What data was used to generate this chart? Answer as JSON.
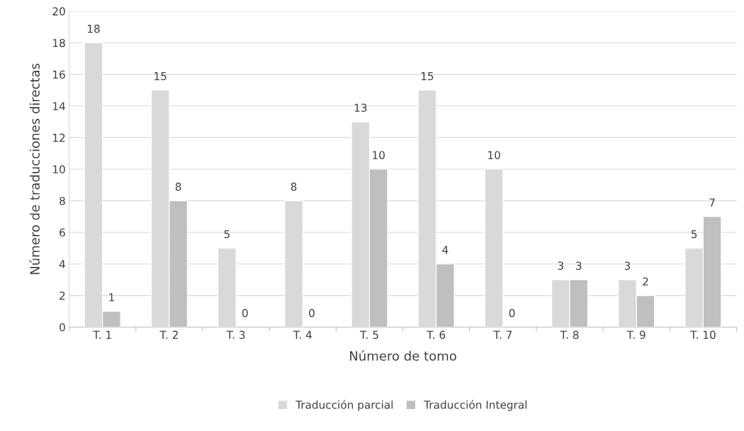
{
  "chart_data": {
    "type": "bar",
    "xlabel": "Número de tomo",
    "ylabel": "Número de traducciones directas",
    "categories": [
      "T. 1",
      "T. 2",
      "T. 3",
      "T. 4",
      "T. 5",
      "T. 6",
      "T. 7",
      "T. 8",
      "T. 9",
      "T. 10"
    ],
    "series": [
      {
        "name": "Traducción parcial",
        "color": "#d9d9d9",
        "values": [
          18,
          15,
          5,
          8,
          13,
          15,
          10,
          3,
          3,
          5
        ]
      },
      {
        "name": "Traducción Integral",
        "color": "#bfbfbf",
        "values": [
          1,
          8,
          0,
          0,
          10,
          4,
          0,
          3,
          2,
          7
        ]
      }
    ],
    "ylim": [
      0,
      20
    ],
    "yticks": [
      0,
      2,
      4,
      6,
      8,
      10,
      12,
      14,
      16,
      18,
      20
    ],
    "grid": "y",
    "legend": "bottom",
    "data_labels": true
  }
}
